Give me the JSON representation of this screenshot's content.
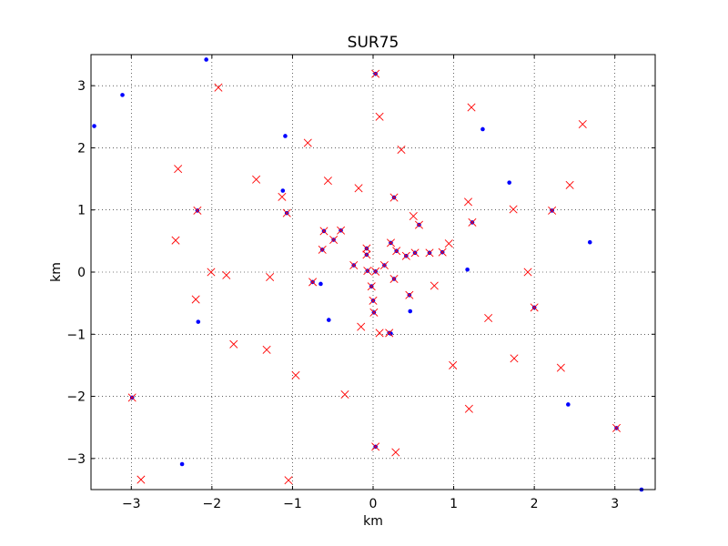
{
  "chart_data": {
    "type": "scatter",
    "title": "SUR75",
    "xlabel": "km",
    "ylabel": "km",
    "xlim": [
      -3.5,
      3.5
    ],
    "ylim": [
      -3.5,
      3.5
    ],
    "xticks": [
      -3,
      -2,
      -1,
      0,
      1,
      2,
      3
    ],
    "yticks": [
      -3,
      -2,
      -1,
      0,
      1,
      2,
      3
    ],
    "xtick_labels": [
      "−3",
      "−2",
      "−1",
      "0",
      "1",
      "2",
      "3"
    ],
    "ytick_labels": [
      "−3",
      "−2",
      "−1",
      "0",
      "1",
      "2",
      "3"
    ],
    "grid": true,
    "series": [
      {
        "marker": "dot",
        "color": "#0000ff",
        "points": [
          [
            -3.46,
            2.35
          ],
          [
            -3.11,
            2.85
          ],
          [
            -2.07,
            3.42
          ],
          [
            -1.09,
            2.19
          ],
          [
            -1.12,
            1.31
          ],
          [
            1.36,
            2.3
          ],
          [
            1.69,
            1.44
          ],
          [
            2.69,
            0.48
          ],
          [
            1.17,
            0.04
          ],
          [
            -0.65,
            -0.19
          ],
          [
            -0.55,
            -0.77
          ],
          [
            0.46,
            -0.63
          ],
          [
            0.22,
            -0.99
          ],
          [
            -2.17,
            -0.8
          ],
          [
            -2.37,
            -3.09
          ],
          [
            2.42,
            -2.13
          ],
          [
            3.33,
            -3.5
          ],
          [
            0.03,
            3.19
          ],
          [
            -2.18,
            0.99
          ],
          [
            -1.07,
            0.95
          ],
          [
            0.26,
            1.2
          ],
          [
            2.22,
            0.99
          ],
          [
            1.23,
            0.8
          ],
          [
            0.57,
            0.76
          ],
          [
            -0.61,
            0.66
          ],
          [
            -0.4,
            0.67
          ],
          [
            -0.49,
            0.52
          ],
          [
            -0.63,
            0.36
          ],
          [
            -0.08,
            0.38
          ],
          [
            -0.08,
            0.28
          ],
          [
            -0.24,
            0.11
          ],
          [
            -0.07,
            0.02
          ],
          [
            0.14,
            0.11
          ],
          [
            0.22,
            0.47
          ],
          [
            0.29,
            0.34
          ],
          [
            0.41,
            0.26
          ],
          [
            0.52,
            0.31
          ],
          [
            0.7,
            0.31
          ],
          [
            0.86,
            0.32
          ],
          [
            0.03,
            0.01
          ],
          [
            -0.02,
            -0.23
          ],
          [
            0.0,
            -0.46
          ],
          [
            0.01,
            -0.65
          ],
          [
            0.26,
            -0.11
          ],
          [
            0.45,
            -0.37
          ],
          [
            -0.75,
            -0.16
          ],
          [
            0.2,
            -0.98
          ],
          [
            2.0,
            -0.57
          ],
          [
            -2.99,
            -2.02
          ],
          [
            0.03,
            -2.81
          ],
          [
            3.02,
            -2.51
          ]
        ]
      },
      {
        "marker": "x",
        "color": "#ff0000",
        "points": [
          [
            0.03,
            3.19
          ],
          [
            -1.92,
            2.97
          ],
          [
            1.22,
            2.65
          ],
          [
            0.08,
            2.5
          ],
          [
            2.6,
            2.38
          ],
          [
            -0.81,
            2.08
          ],
          [
            0.35,
            1.97
          ],
          [
            -2.42,
            1.66
          ],
          [
            -1.45,
            1.49
          ],
          [
            -0.56,
            1.47
          ],
          [
            2.44,
            1.4
          ],
          [
            -0.18,
            1.35
          ],
          [
            -1.13,
            1.21
          ],
          [
            0.26,
            1.2
          ],
          [
            1.18,
            1.13
          ],
          [
            1.74,
            1.01
          ],
          [
            -2.18,
            0.99
          ],
          [
            -1.07,
            0.95
          ],
          [
            2.22,
            0.99
          ],
          [
            0.5,
            0.9
          ],
          [
            1.23,
            0.8
          ],
          [
            0.57,
            0.76
          ],
          [
            -0.61,
            0.66
          ],
          [
            -0.4,
            0.67
          ],
          [
            -0.49,
            0.52
          ],
          [
            -2.45,
            0.51
          ],
          [
            0.94,
            0.46
          ],
          [
            -0.63,
            0.36
          ],
          [
            -0.08,
            0.38
          ],
          [
            -0.08,
            0.28
          ],
          [
            -0.24,
            0.11
          ],
          [
            -0.07,
            0.02
          ],
          [
            0.14,
            0.11
          ],
          [
            0.22,
            0.47
          ],
          [
            0.29,
            0.34
          ],
          [
            0.41,
            0.26
          ],
          [
            0.52,
            0.31
          ],
          [
            0.7,
            0.31
          ],
          [
            0.86,
            0.32
          ],
          [
            0.03,
            0.01
          ],
          [
            -2.01,
            0.0
          ],
          [
            -1.82,
            -0.05
          ],
          [
            -1.28,
            -0.08
          ],
          [
            1.92,
            0.0
          ],
          [
            -0.02,
            -0.23
          ],
          [
            0.0,
            -0.46
          ],
          [
            0.01,
            -0.65
          ],
          [
            0.26,
            -0.11
          ],
          [
            0.45,
            -0.37
          ],
          [
            0.76,
            -0.22
          ],
          [
            -0.75,
            -0.16
          ],
          [
            -2.2,
            -0.44
          ],
          [
            2.0,
            -0.57
          ],
          [
            1.43,
            -0.74
          ],
          [
            -0.15,
            -0.88
          ],
          [
            0.08,
            -0.98
          ],
          [
            0.2,
            -0.98
          ],
          [
            -1.73,
            -1.16
          ],
          [
            -1.32,
            -1.25
          ],
          [
            1.75,
            -1.39
          ],
          [
            0.99,
            -1.5
          ],
          [
            2.33,
            -1.54
          ],
          [
            -0.96,
            -1.66
          ],
          [
            -0.35,
            -1.97
          ],
          [
            -2.99,
            -2.02
          ],
          [
            1.19,
            -2.2
          ],
          [
            3.02,
            -2.51
          ],
          [
            0.03,
            -2.81
          ],
          [
            0.28,
            -2.9
          ],
          [
            -2.88,
            -3.34
          ],
          [
            -1.05,
            -3.35
          ]
        ]
      }
    ]
  }
}
